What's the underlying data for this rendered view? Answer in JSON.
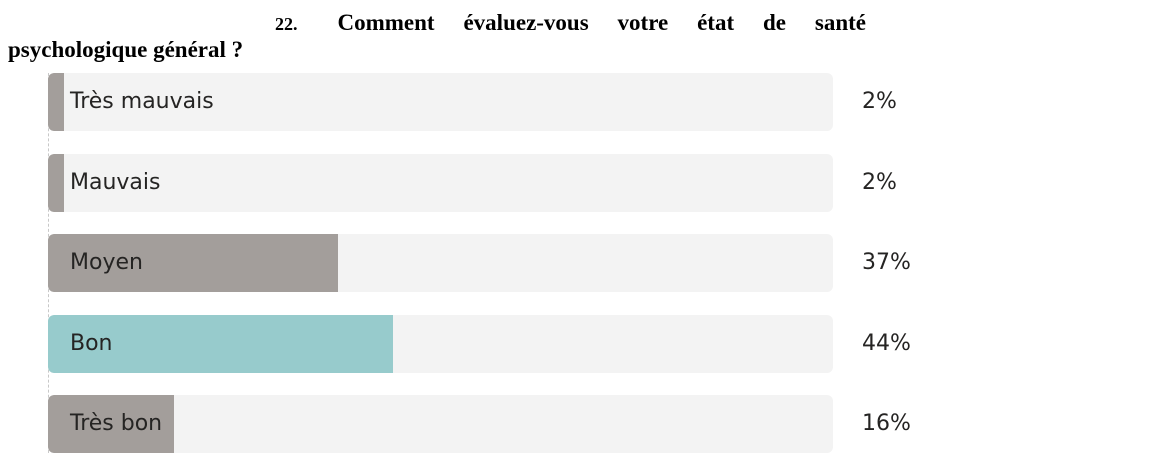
{
  "question_number": "22.",
  "chart_data": {
    "type": "bar",
    "orientation": "horizontal",
    "title": "Comment évaluez-vous votre état de santé psychologique général ?",
    "categories": [
      "Très mauvais",
      "Mauvais",
      "Moyen",
      "Bon",
      "Très bon"
    ],
    "values": [
      2,
      2,
      37,
      44,
      16
    ],
    "value_labels": [
      "2%",
      "2%",
      "37%",
      "44%",
      "16%"
    ],
    "colors": [
      "#a39e9b",
      "#a39e9b",
      "#a39e9b",
      "#97cbcc",
      "#a39e9b"
    ],
    "xlim": [
      0,
      100
    ]
  }
}
